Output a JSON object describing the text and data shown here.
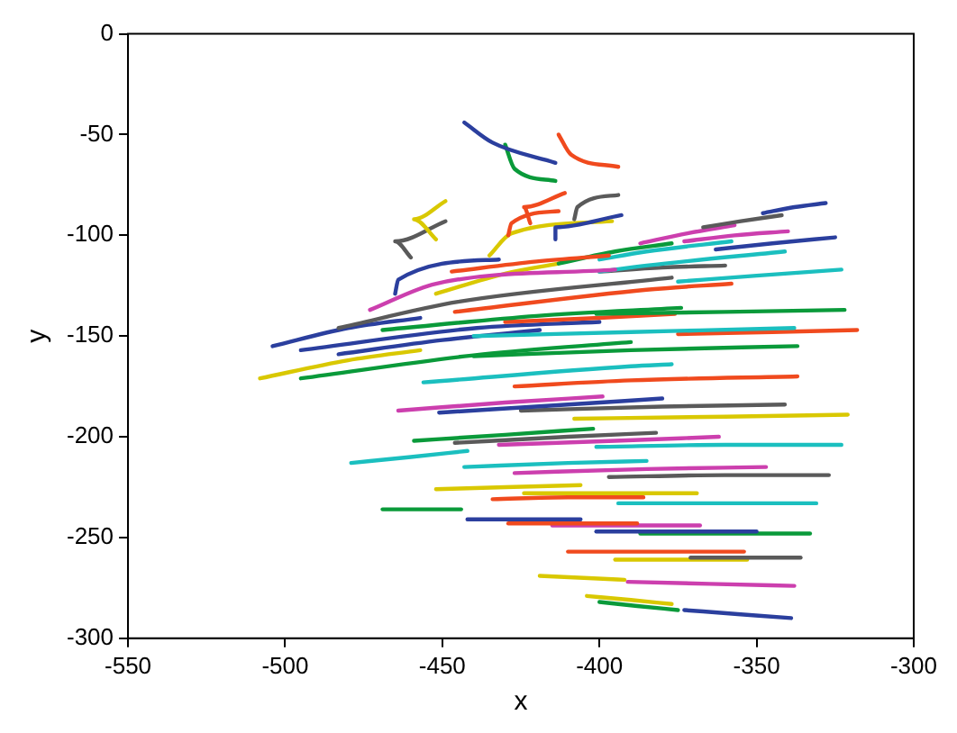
{
  "chart_data": {
    "type": "line",
    "xlabel": "x",
    "ylabel": "y",
    "xlim": [
      -550,
      -300
    ],
    "xticks": [
      -550,
      -500,
      -450,
      -400,
      -350,
      -300
    ],
    "ylim": [
      -300,
      0
    ],
    "yticks": [
      -300,
      -250,
      -200,
      -150,
      -100,
      -50,
      0
    ],
    "grid": false,
    "legend": false,
    "marker": "none",
    "line_style": "solid",
    "series": [
      {
        "color": "#2b3f9e",
        "x": [
          -443,
          -434,
          -414
        ],
        "values": [
          -44,
          -54,
          -64
        ]
      },
      {
        "color": "#0a9a3a",
        "x": [
          -430,
          -427,
          -414
        ],
        "values": [
          -55,
          -67,
          -73
        ]
      },
      {
        "color": "#f04a1e",
        "x": [
          -413,
          -409,
          -394
        ],
        "values": [
          -50,
          -60,
          -66
        ]
      },
      {
        "color": "#d9c800",
        "x": [
          -449,
          -459,
          -452
        ],
        "values": [
          -83,
          -92,
          -102
        ]
      },
      {
        "color": "#5a5a5a",
        "x": [
          -449,
          -465,
          -460
        ],
        "values": [
          -93,
          -103,
          -111
        ]
      },
      {
        "color": "#f04a1e",
        "x": [
          -411,
          -424,
          -422
        ],
        "values": [
          -79,
          -86,
          -94
        ]
      },
      {
        "color": "#f04a1e",
        "x": [
          -413,
          -428,
          -429
        ],
        "values": [
          -88,
          -94,
          -100
        ]
      },
      {
        "color": "#5a5a5a",
        "x": [
          -394,
          -407,
          -408
        ],
        "values": [
          -80,
          -86,
          -92
        ]
      },
      {
        "color": "#2b3f9e",
        "x": [
          -393,
          -414,
          -414
        ],
        "values": [
          -90,
          -96,
          -102
        ]
      },
      {
        "color": "#d9c800",
        "x": [
          -396,
          -428,
          -435
        ],
        "values": [
          -93,
          -99,
          -110
        ]
      },
      {
        "color": "#2b3f9e",
        "x": [
          -465,
          -464,
          -432
        ],
        "values": [
          -129,
          -122,
          -112
        ]
      },
      {
        "color": "#f04a1e",
        "x": [
          -447,
          -420,
          -397
        ],
        "values": [
          -118,
          -113,
          -110
        ]
      },
      {
        "color": "#0a9a3a",
        "x": [
          -413,
          -395,
          -377
        ],
        "values": [
          -114,
          -108,
          -104
        ]
      },
      {
        "color": "#cc3fae",
        "x": [
          -473,
          -452,
          -395
        ],
        "values": [
          -137,
          -124,
          -117
        ]
      },
      {
        "color": "#d9c800",
        "x": [
          -452,
          -430,
          -413
        ],
        "values": [
          -129,
          -119,
          -114
        ]
      },
      {
        "color": "#5a5a5a",
        "x": [
          -483,
          -445,
          -377
        ],
        "values": [
          -146,
          -133,
          -121
        ]
      },
      {
        "color": "#f04a1e",
        "x": [
          -446,
          -385,
          -358
        ],
        "values": [
          -138,
          -127,
          -124
        ]
      },
      {
        "color": "#2b3f9e",
        "x": [
          -504,
          -480,
          -457
        ],
        "values": [
          -155,
          -146,
          -141
        ]
      },
      {
        "color": "#0a9a3a",
        "x": [
          -469,
          -420,
          -374
        ],
        "values": [
          -147,
          -140,
          -136
        ]
      },
      {
        "color": "#0a9a3a",
        "x": [
          -401,
          -360,
          -322
        ],
        "values": [
          -139,
          -138,
          -137
        ]
      },
      {
        "color": "#f04a1e",
        "x": [
          -430,
          -400,
          -376
        ],
        "values": [
          -143,
          -141,
          -139
        ]
      },
      {
        "color": "#1bbfbf",
        "x": [
          -440,
          -390,
          -338
        ],
        "values": [
          -150,
          -148,
          -146
        ]
      },
      {
        "color": "#f04a1e",
        "x": [
          -375,
          -345,
          -318
        ],
        "values": [
          -149,
          -148,
          -147
        ]
      },
      {
        "color": "#0a9a3a",
        "x": [
          -440,
          -390,
          -337
        ],
        "values": [
          -160,
          -157,
          -155
        ]
      },
      {
        "color": "#d9c800",
        "x": [
          -508,
          -480,
          -457
        ],
        "values": [
          -171,
          -162,
          -157
        ]
      },
      {
        "color": "#2b3f9e",
        "x": [
          -495,
          -439,
          -400
        ],
        "values": [
          -157,
          -146,
          -143
        ]
      },
      {
        "color": "#2b3f9e",
        "x": [
          -483,
          -450,
          -419
        ],
        "values": [
          -159,
          -152,
          -147
        ]
      },
      {
        "color": "#0a9a3a",
        "x": [
          -495,
          -437,
          -390
        ],
        "values": [
          -171,
          -159,
          -153
        ]
      },
      {
        "color": "#1bbfbf",
        "x": [
          -456,
          -390,
          -377
        ],
        "values": [
          -173,
          -165,
          -164
        ]
      },
      {
        "color": "#f04a1e",
        "x": [
          -427,
          -390,
          -337
        ],
        "values": [
          -175,
          -172,
          -170
        ]
      },
      {
        "color": "#cc3fae",
        "x": [
          -464,
          -430,
          -399
        ],
        "values": [
          -187,
          -183,
          -180
        ]
      },
      {
        "color": "#2b3f9e",
        "x": [
          -451,
          -410,
          -380
        ],
        "values": [
          -188,
          -184,
          -181
        ]
      },
      {
        "color": "#5a5a5a",
        "x": [
          -425,
          -380,
          -341
        ],
        "values": [
          -187,
          -185,
          -184
        ]
      },
      {
        "color": "#d9c800",
        "x": [
          -408,
          -360,
          -321
        ],
        "values": [
          -191,
          -190,
          -189
        ]
      },
      {
        "color": "#0a9a3a",
        "x": [
          -459,
          -430,
          -402
        ],
        "values": [
          -202,
          -199,
          -196
        ]
      },
      {
        "color": "#5a5a5a",
        "x": [
          -446,
          -410,
          -382
        ],
        "values": [
          -203,
          -200,
          -198
        ]
      },
      {
        "color": "#cc3fae",
        "x": [
          -432,
          -395,
          -362
        ],
        "values": [
          -204,
          -202,
          -200
        ]
      },
      {
        "color": "#1bbfbf",
        "x": [
          -401,
          -360,
          -323
        ],
        "values": [
          -205,
          -204,
          -204
        ]
      },
      {
        "color": "#1bbfbf",
        "x": [
          -479,
          -460,
          -442
        ],
        "values": [
          -213,
          -210,
          -207
        ]
      },
      {
        "color": "#1bbfbf",
        "x": [
          -443,
          -410,
          -385
        ],
        "values": [
          -215,
          -213,
          -212
        ]
      },
      {
        "color": "#cc3fae",
        "x": [
          -427,
          -385,
          -347
        ],
        "values": [
          -218,
          -216,
          -215
        ]
      },
      {
        "color": "#5a5a5a",
        "x": [
          -397,
          -360,
          -327
        ],
        "values": [
          -220,
          -219,
          -219
        ]
      },
      {
        "color": "#d9c800",
        "x": [
          -452,
          -430,
          -406
        ],
        "values": [
          -226,
          -225,
          -224
        ]
      },
      {
        "color": "#d9c800",
        "x": [
          -424,
          -395,
          -369
        ],
        "values": [
          -228,
          -228,
          -228
        ]
      },
      {
        "color": "#f04a1e",
        "x": [
          -434,
          -410,
          -386
        ],
        "values": [
          -231,
          -230,
          -230
        ]
      },
      {
        "color": "#1bbfbf",
        "x": [
          -394,
          -360,
          -331
        ],
        "values": [
          -233,
          -233,
          -233
        ]
      },
      {
        "color": "#0a9a3a",
        "x": [
          -469,
          -456,
          -444
        ],
        "values": [
          -236,
          -236,
          -236
        ]
      },
      {
        "color": "#2b3f9e",
        "x": [
          -442,
          -424,
          -406
        ],
        "values": [
          -241,
          -241,
          -241
        ]
      },
      {
        "color": "#f04a1e",
        "x": [
          -429,
          -408,
          -388
        ],
        "values": [
          -243,
          -243,
          -243
        ]
      },
      {
        "color": "#cc3fae",
        "x": [
          -415,
          -390,
          -368
        ],
        "values": [
          -244,
          -244,
          -244
        ]
      },
      {
        "color": "#2b3f9e",
        "x": [
          -401,
          -375,
          -350
        ],
        "values": [
          -247,
          -247,
          -247
        ]
      },
      {
        "color": "#0a9a3a",
        "x": [
          -387,
          -360,
          -333
        ],
        "values": [
          -248,
          -248,
          -248
        ]
      },
      {
        "color": "#f04a1e",
        "x": [
          -410,
          -380,
          -354
        ],
        "values": [
          -257,
          -257,
          -257
        ]
      },
      {
        "color": "#5a5a5a",
        "x": [
          -371,
          -355,
          -336
        ],
        "values": [
          -260,
          -260,
          -260
        ]
      },
      {
        "color": "#d9c800",
        "x": [
          -395,
          -375,
          -353
        ],
        "values": [
          -261,
          -261,
          -261
        ]
      },
      {
        "color": "#d9c800",
        "x": [
          -419,
          -405,
          -392
        ],
        "values": [
          -269,
          -270,
          -271
        ]
      },
      {
        "color": "#cc3fae",
        "x": [
          -391,
          -365,
          -338
        ],
        "values": [
          -272,
          -273,
          -274
        ]
      },
      {
        "color": "#d9c800",
        "x": [
          -404,
          -390,
          -377
        ],
        "values": [
          -279,
          -281,
          -283
        ]
      },
      {
        "color": "#0a9a3a",
        "x": [
          -400,
          -388,
          -375
        ],
        "values": [
          -282,
          -284,
          -286
        ]
      },
      {
        "color": "#2b3f9e",
        "x": [
          -373,
          -356,
          -339
        ],
        "values": [
          -286,
          -288,
          -290
        ]
      },
      {
        "color": "#2b3f9e",
        "x": [
          -348,
          -338,
          -328
        ],
        "values": [
          -89,
          -86,
          -84
        ]
      },
      {
        "color": "#5a5a5a",
        "x": [
          -367,
          -355,
          -342
        ],
        "values": [
          -96,
          -93,
          -90
        ]
      },
      {
        "color": "#cc3fae",
        "x": [
          -387,
          -372,
          -357
        ],
        "values": [
          -104,
          -99,
          -95
        ]
      },
      {
        "color": "#cc3fae",
        "x": [
          -373,
          -357,
          -340
        ],
        "values": [
          -103,
          -100,
          -98
        ]
      },
      {
        "color": "#2b3f9e",
        "x": [
          -363,
          -345,
          -325
        ],
        "values": [
          -107,
          -104,
          -101
        ]
      },
      {
        "color": "#1bbfbf",
        "x": [
          -400,
          -385,
          -358
        ],
        "values": [
          -112,
          -108,
          -103
        ]
      },
      {
        "color": "#1bbfbf",
        "x": [
          -400,
          -385,
          -341
        ],
        "values": [
          -118,
          -115,
          -108
        ]
      },
      {
        "color": "#5a5a5a",
        "x": [
          -400,
          -380,
          -360
        ],
        "values": [
          -118,
          -116,
          -115
        ]
      },
      {
        "color": "#1bbfbf",
        "x": [
          -375,
          -350,
          -323
        ],
        "values": [
          -123,
          -120,
          -117
        ]
      }
    ]
  }
}
